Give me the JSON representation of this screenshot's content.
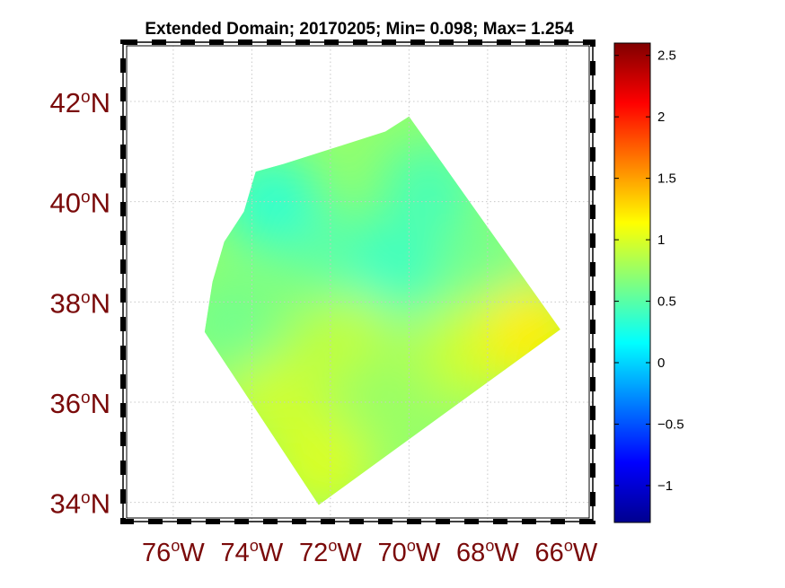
{
  "chart_data": {
    "type": "heatmap",
    "title": "Extended Domain; 20170205; Min= 0.098; Max= 1.254",
    "xlabel": "",
    "ylabel": "",
    "x_ticks": [
      {
        "value": -76,
        "deg": "76",
        "hemi": "W"
      },
      {
        "value": -74,
        "deg": "74",
        "hemi": "W"
      },
      {
        "value": -72,
        "deg": "72",
        "hemi": "W"
      },
      {
        "value": -70,
        "deg": "70",
        "hemi": "W"
      },
      {
        "value": -68,
        "deg": "68",
        "hemi": "W"
      },
      {
        "value": -66,
        "deg": "66",
        "hemi": "W"
      }
    ],
    "y_ticks": [
      {
        "value": 34,
        "deg": "34",
        "hemi": "N"
      },
      {
        "value": 36,
        "deg": "36",
        "hemi": "N"
      },
      {
        "value": 38,
        "deg": "38",
        "hemi": "N"
      },
      {
        "value": 40,
        "deg": "40",
        "hemi": "N"
      },
      {
        "value": 42,
        "deg": "42",
        "hemi": "N"
      }
    ],
    "xlim": [
      -77.3,
      -65.3
    ],
    "ylim": [
      33.6,
      43.2
    ],
    "grid": true,
    "colorbar": {
      "position": "right",
      "range": [
        -1.3,
        2.6
      ],
      "ticks": [
        {
          "value": -1,
          "label": "−1"
        },
        {
          "value": -0.5,
          "label": "−0.5"
        },
        {
          "value": 0,
          "label": "0"
        },
        {
          "value": 0.5,
          "label": "0.5"
        },
        {
          "value": 1,
          "label": "1"
        },
        {
          "value": 1.5,
          "label": "1.5"
        },
        {
          "value": 2,
          "label": "2"
        },
        {
          "value": 2.5,
          "label": "2.5"
        }
      ]
    },
    "domain_outline": [
      [
        -75.2,
        37.4
      ],
      [
        -75.0,
        38.4
      ],
      [
        -74.7,
        39.2
      ],
      [
        -74.2,
        39.8
      ],
      [
        -73.9,
        40.6
      ],
      [
        -73.2,
        40.75
      ],
      [
        -71.8,
        41.1
      ],
      [
        -70.6,
        41.4
      ],
      [
        -70.0,
        41.7
      ],
      [
        -66.15,
        37.45
      ],
      [
        -72.3,
        33.95
      ]
    ],
    "field_values": [
      {
        "lon": -69.5,
        "lat": 40.2,
        "value": 0.45
      },
      {
        "lon": -72.0,
        "lat": 39.0,
        "value": 0.55
      },
      {
        "lon": -73.5,
        "lat": 40.0,
        "value": 0.35
      },
      {
        "lon": -70.5,
        "lat": 38.6,
        "value": 0.4
      },
      {
        "lon": -68.0,
        "lat": 38.5,
        "value": 0.6
      },
      {
        "lon": -71.5,
        "lat": 37.2,
        "value": 0.9
      },
      {
        "lon": -68.5,
        "lat": 37.0,
        "value": 0.95
      },
      {
        "lon": -66.9,
        "lat": 37.4,
        "value": 1.2
      },
      {
        "lon": -73.5,
        "lat": 36.2,
        "value": 0.95
      },
      {
        "lon": -72.2,
        "lat": 34.8,
        "value": 1.0
      },
      {
        "lon": -70.5,
        "lat": 36.0,
        "value": 0.75
      },
      {
        "lon": -74.5,
        "lat": 37.6,
        "value": 0.6
      }
    ]
  }
}
